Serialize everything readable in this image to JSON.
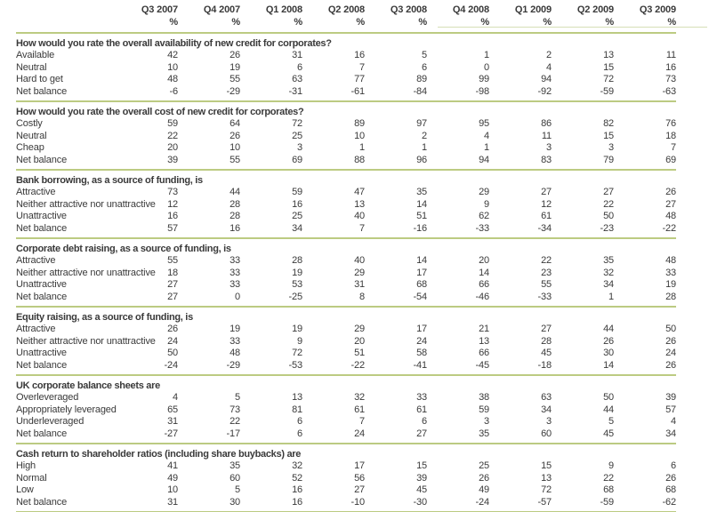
{
  "chart_data": {
    "type": "table",
    "unit": "%",
    "columns": [
      "Q3 2007",
      "Q4 2007",
      "Q1 2008",
      "Q2 2008",
      "Q3 2008",
      "Q4 2008",
      "Q1 2009",
      "Q2 2009",
      "Q3 2009"
    ],
    "sections": [
      {
        "title": "How would you rate the overall availability of new credit for corporates?",
        "rows": [
          {
            "label": "Available",
            "values": [
              42,
              26,
              31,
              16,
              5,
              1,
              2,
              13,
              11
            ]
          },
          {
            "label": "Neutral",
            "values": [
              10,
              19,
              6,
              7,
              6,
              0,
              4,
              15,
              16
            ]
          },
          {
            "label": "Hard to get",
            "values": [
              48,
              55,
              63,
              77,
              89,
              99,
              94,
              72,
              73
            ]
          },
          {
            "label": "Net balance",
            "values": [
              -6,
              -29,
              -31,
              -61,
              -84,
              -98,
              -92,
              -59,
              -63
            ]
          }
        ]
      },
      {
        "title": "How would you rate the overall cost of new credit for corporates?",
        "rows": [
          {
            "label": "Costly",
            "values": [
              59,
              64,
              72,
              89,
              97,
              95,
              86,
              82,
              76
            ]
          },
          {
            "label": "Neutral",
            "values": [
              22,
              26,
              25,
              10,
              2,
              4,
              11,
              15,
              18
            ]
          },
          {
            "label": "Cheap",
            "values": [
              20,
              10,
              3,
              1,
              1,
              1,
              3,
              3,
              7
            ]
          },
          {
            "label": "Net balance",
            "values": [
              39,
              55,
              69,
              88,
              96,
              94,
              83,
              79,
              69
            ]
          }
        ]
      },
      {
        "title": "Bank borrowing, as a source of funding, is",
        "rows": [
          {
            "label": "Attractive",
            "values": [
              73,
              44,
              59,
              47,
              35,
              29,
              27,
              27,
              26
            ]
          },
          {
            "label": "Neither attractive nor unattractive",
            "values": [
              12,
              28,
              16,
              13,
              14,
              9,
              12,
              22,
              27
            ]
          },
          {
            "label": "Unattractive",
            "values": [
              16,
              28,
              25,
              40,
              51,
              62,
              61,
              50,
              48
            ]
          },
          {
            "label": "Net balance",
            "values": [
              57,
              16,
              34,
              7,
              -16,
              -33,
              -34,
              -23,
              -22
            ]
          }
        ]
      },
      {
        "title": "Corporate debt raising, as a source of funding, is",
        "rows": [
          {
            "label": "Attractive",
            "values": [
              55,
              33,
              28,
              40,
              14,
              20,
              22,
              35,
              48
            ]
          },
          {
            "label": "Neither attractive nor unattractive",
            "values": [
              18,
              33,
              19,
              29,
              17,
              14,
              23,
              32,
              33
            ]
          },
          {
            "label": "Unattractive",
            "values": [
              27,
              33,
              53,
              31,
              68,
              66,
              55,
              34,
              19
            ]
          },
          {
            "label": "Net balance",
            "values": [
              27,
              0,
              -25,
              8,
              -54,
              -46,
              -33,
              1,
              28
            ]
          }
        ]
      },
      {
        "title": "Equity raising, as a source of funding, is",
        "rows": [
          {
            "label": "Attractive",
            "values": [
              26,
              19,
              19,
              29,
              17,
              21,
              27,
              44,
              50
            ]
          },
          {
            "label": "Neither attractive nor unattractive",
            "values": [
              24,
              33,
              9,
              20,
              24,
              13,
              28,
              26,
              26
            ]
          },
          {
            "label": "Unattractive",
            "values": [
              50,
              48,
              72,
              51,
              58,
              66,
              45,
              30,
              24
            ]
          },
          {
            "label": "Net balance",
            "values": [
              -24,
              -29,
              -53,
              -22,
              -41,
              -45,
              -18,
              14,
              26
            ]
          }
        ]
      },
      {
        "title": "UK corporate balance sheets are",
        "rows": [
          {
            "label": "Overleveraged",
            "values": [
              4,
              5,
              13,
              32,
              33,
              38,
              63,
              50,
              39
            ]
          },
          {
            "label": "Appropriately leveraged",
            "values": [
              65,
              73,
              81,
              61,
              61,
              59,
              34,
              44,
              57
            ]
          },
          {
            "label": "Underleveraged",
            "values": [
              31,
              22,
              6,
              7,
              6,
              3,
              3,
              5,
              4
            ]
          },
          {
            "label": "Net balance",
            "values": [
              -27,
              -17,
              6,
              24,
              27,
              35,
              60,
              45,
              34
            ]
          }
        ]
      },
      {
        "title": "Cash return to shareholder ratios (including share buybacks) are",
        "rows": [
          {
            "label": "High",
            "values": [
              41,
              35,
              32,
              17,
              15,
              25,
              15,
              9,
              6
            ]
          },
          {
            "label": "Normal",
            "values": [
              49,
              60,
              52,
              56,
              39,
              26,
              13,
              22,
              26
            ]
          },
          {
            "label": "Low",
            "values": [
              10,
              5,
              16,
              27,
              45,
              49,
              72,
              68,
              68
            ]
          },
          {
            "label": "Net balance",
            "values": [
              31,
              30,
              16,
              -10,
              -30,
              -24,
              -57,
              -59,
              -62
            ]
          }
        ]
      }
    ]
  },
  "colors": {
    "rule_green": "#bccb82",
    "text": "#3a3a3a"
  }
}
